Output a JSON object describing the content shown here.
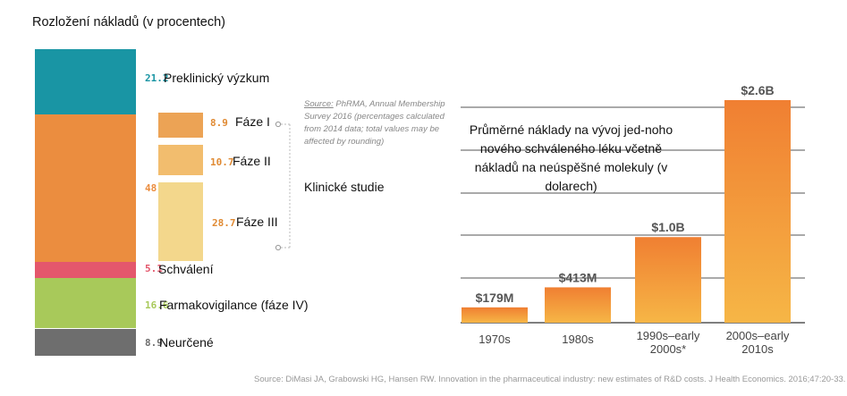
{
  "left": {
    "title": "Rozložení nákladů (v procentech)",
    "items": [
      {
        "key": "preclinical",
        "value": "21.2",
        "label": "Preklinický výzkum",
        "color": "#1995a4"
      },
      {
        "key": "clinical",
        "value": "48.3",
        "label": "Klinické studie",
        "color": "#eb8d3f"
      },
      {
        "key": "approval",
        "value": "5.1",
        "label": "Schválení",
        "color": "#e4576c"
      },
      {
        "key": "pharmacovigilance",
        "value": "16.6",
        "label": "Farmakovigilance (fáze IV)",
        "color": "#a8c95a"
      },
      {
        "key": "undetermined",
        "value": "8.9",
        "label": "Neurčené",
        "color": "#6e6e6e"
      }
    ],
    "phases": [
      {
        "value": "8.9",
        "label": "Fáze I",
        "color": "#eca355"
      },
      {
        "value": "10.7",
        "label": "Fáze II",
        "color": "#f2bd6e"
      },
      {
        "value": "28.7",
        "label": "Fáze III",
        "color": "#f3d78c"
      }
    ],
    "source": {
      "prefix": "Source:",
      "text": " PhRMA, Annual Membership Survey 2016 (percentages calculated from 2014 data; total values may be affected by rounding)"
    }
  },
  "right": {
    "title": "Průměrné náklady na vývoj jed-noho nového schváleného léku včetně nákladů na neúspěšné molekuly (v dolarech)"
  },
  "chart_data": {
    "type": "bar",
    "categories": [
      "1970s",
      "1980s",
      "1990s–early 2000s*",
      "2000s–early 2010s"
    ],
    "values": [
      0.179,
      0.413,
      1.0,
      2.6
    ],
    "value_labels": [
      "$179M",
      "$413M",
      "$1.0B",
      "$2.6B"
    ],
    "ylim": [
      0,
      2.6
    ],
    "grid": true,
    "colors": {
      "top": "#f07f32",
      "bottom": "#f6b646"
    }
  },
  "footer": "Source: DiMasi JA, Grabowski HG, Hansen RW. Innovation in the pharmaceutical industry: new estimates of R&D costs. J Health Economics. 2016;47:20-33."
}
